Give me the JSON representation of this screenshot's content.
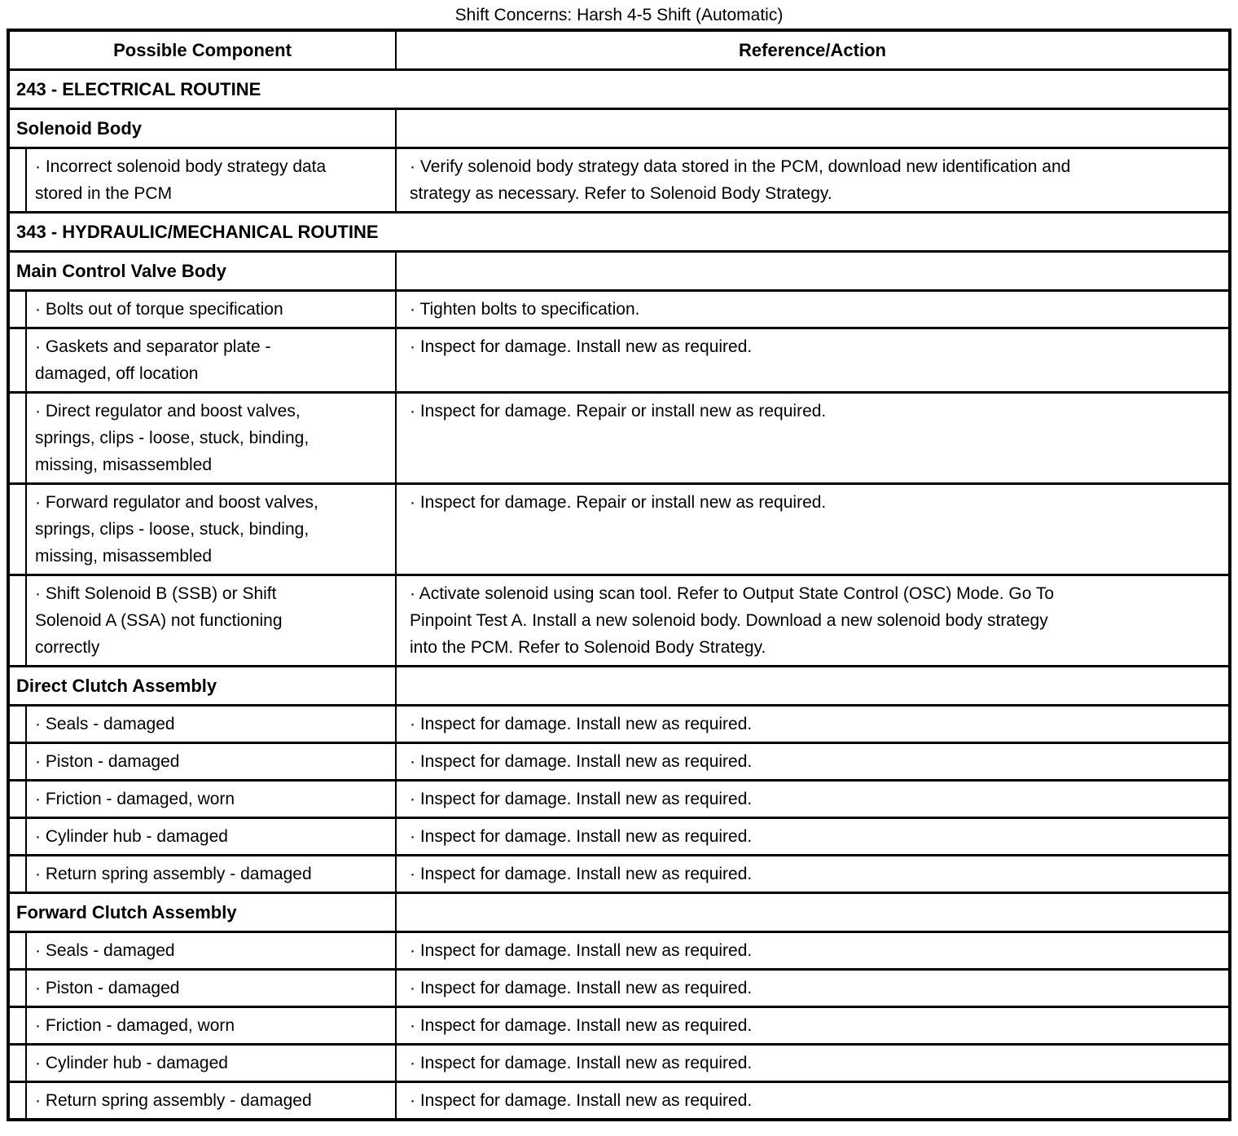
{
  "page": {
    "title": "Shift Concerns: Harsh 4-5 Shift (Automatic)"
  },
  "table": {
    "headers": {
      "component": "Possible Component",
      "action": "Reference/Action"
    },
    "rows": [
      {
        "type": "section",
        "text": "243 - ELECTRICAL ROUTINE"
      },
      {
        "type": "subheader",
        "text": "Solenoid Body"
      },
      {
        "type": "item",
        "component": "· Incorrect solenoid body strategy data\nstored in the PCM",
        "action": "· Verify solenoid body strategy data stored in the PCM, download new identification and\nstrategy as necessary. Refer to Solenoid Body Strategy."
      },
      {
        "type": "section",
        "text": "343 - HYDRAULIC/MECHANICAL ROUTINE"
      },
      {
        "type": "subheader",
        "text": "Main Control Valve Body"
      },
      {
        "type": "item",
        "component": "· Bolts out of torque specification",
        "action": "· Tighten bolts to specification."
      },
      {
        "type": "item",
        "component": "· Gaskets and separator plate -\ndamaged, off location",
        "action": "· Inspect for damage. Install new as required."
      },
      {
        "type": "item",
        "component": "· Direct regulator and boost valves,\nsprings, clips - loose, stuck, binding,\nmissing, misassembled",
        "action": "· Inspect for damage. Repair or install new as required."
      },
      {
        "type": "item",
        "component": "· Forward regulator and boost valves,\nsprings, clips - loose, stuck, binding,\nmissing, misassembled",
        "action": "· Inspect for damage. Repair or install new as required."
      },
      {
        "type": "item",
        "component": "· Shift Solenoid B (SSB) or Shift\nSolenoid A (SSA) not functioning\ncorrectly",
        "action": "· Activate solenoid using scan tool. Refer to Output State Control (OSC) Mode. Go To\nPinpoint Test A. Install a new solenoid body. Download a new solenoid body strategy\ninto the PCM. Refer to Solenoid Body Strategy."
      },
      {
        "type": "subheader",
        "text": "Direct Clutch Assembly"
      },
      {
        "type": "item",
        "component": "· Seals - damaged",
        "action": "· Inspect for damage. Install new as required."
      },
      {
        "type": "item",
        "component": "· Piston - damaged",
        "action": "· Inspect for damage. Install new as required."
      },
      {
        "type": "item",
        "component": "· Friction - damaged, worn",
        "action": "· Inspect for damage. Install new as required."
      },
      {
        "type": "item",
        "component": "· Cylinder hub - damaged",
        "action": "· Inspect for damage. Install new as required."
      },
      {
        "type": "item",
        "component": "· Return spring assembly - damaged",
        "action": "· Inspect for damage. Install new as required."
      },
      {
        "type": "subheader",
        "text": "Forward Clutch Assembly"
      },
      {
        "type": "item",
        "component": "· Seals - damaged",
        "action": "· Inspect for damage. Install new as required."
      },
      {
        "type": "item",
        "component": "· Piston - damaged",
        "action": "· Inspect for damage. Install new as required."
      },
      {
        "type": "item",
        "component": "· Friction - damaged, worn",
        "action": "· Inspect for damage. Install new as required."
      },
      {
        "type": "item",
        "component": "· Cylinder hub - damaged",
        "action": "· Inspect for damage. Install new as required."
      },
      {
        "type": "item",
        "component": "· Return spring assembly - damaged",
        "action": "· Inspect for damage. Install new as required."
      }
    ]
  }
}
